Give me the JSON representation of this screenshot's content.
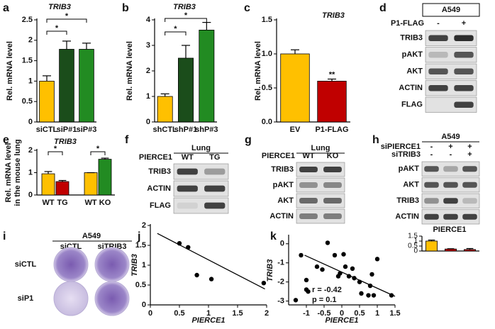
{
  "panel_labels": [
    "a",
    "b",
    "c",
    "d",
    "e",
    "f",
    "g",
    "h",
    "i",
    "j",
    "k"
  ],
  "chart_data": [
    {
      "type": "bar",
      "title": "TRIB3",
      "y_label": "Rel. mRNA level",
      "categories": [
        "siCTL",
        "siP#1",
        "siP#3"
      ],
      "values": [
        1.0,
        1.78,
        1.78
      ],
      "errors": [
        0.13,
        0.2,
        0.15
      ],
      "colors": [
        "#FFC000",
        "#1B4D1B",
        "#228B22"
      ],
      "ylim": [
        0,
        2.5
      ],
      "yticks": [
        0,
        0.5,
        1,
        1.5,
        2,
        2.5
      ],
      "brackets": [
        {
          "between": [
            0,
            1
          ],
          "label": "*"
        },
        {
          "between": [
            0,
            2
          ],
          "label": "*"
        }
      ]
    },
    {
      "type": "bar",
      "title": "TRIB3",
      "y_label": "Rel. mRNA level",
      "categories": [
        "shCTL",
        "shP#1",
        "shP#3"
      ],
      "values": [
        1.0,
        2.5,
        3.6
      ],
      "errors": [
        0.1,
        0.5,
        0.3
      ],
      "colors": [
        "#FFC000",
        "#1B4D1B",
        "#228B22"
      ],
      "ylim": [
        0,
        4
      ],
      "yticks": [
        0,
        1,
        2,
        3,
        4
      ],
      "brackets": [
        {
          "between": [
            0,
            1
          ],
          "label": "*"
        },
        {
          "between": [
            0,
            2
          ],
          "label": "*"
        }
      ]
    },
    {
      "type": "bar",
      "title": "TRIB3",
      "y_label": "Rel. mRNA level",
      "categories": [
        "EV",
        "P1-FLAG"
      ],
      "values": [
        1.0,
        0.6
      ],
      "errors": [
        0.06,
        0.03
      ],
      "colors": [
        "#FFC000",
        "#C00000"
      ],
      "ylim": [
        0,
        1.5
      ],
      "yticks": [
        {
          "value": 0,
          "label": "0.0"
        },
        {
          "value": 0.5,
          "label": "0.5"
        },
        {
          "value": 1,
          "label": "1.0"
        },
        {
          "value": 1.5,
          "label": "1.5"
        }
      ],
      "significance": [
        null,
        "**"
      ]
    },
    {
      "type": "bar",
      "title": "TRIB3",
      "y_label": [
        "Rel. mRNA level",
        "in the mouse lung"
      ],
      "categories": [
        "WT",
        "TG",
        "WT",
        "KO"
      ],
      "values": [
        0.95,
        0.6,
        1.0,
        1.6
      ],
      "errors": [
        0.1,
        0.05,
        0.0,
        0.05
      ],
      "colors": [
        "#FFC000",
        "#C00000",
        "#FFC000",
        "#228B22"
      ],
      "ylim": [
        0,
        2
      ],
      "yticks": [
        0,
        1,
        2
      ],
      "brackets": [
        {
          "between": [
            0,
            1
          ],
          "label": "*"
        },
        {
          "between": [
            2,
            3
          ],
          "label": "*"
        }
      ]
    },
    {
      "type": "bar",
      "title": "PIERCE1",
      "values": [
        1.0,
        0.2,
        0.15
      ],
      "errors": [
        0.1,
        0.03,
        0.1
      ],
      "colors": [
        "#FFC000",
        "#C00000",
        "#C00000"
      ],
      "ylim": [
        0,
        1.5
      ],
      "yticks": [
        0,
        0.5,
        1,
        1.5
      ]
    },
    {
      "type": "scatter",
      "x_label": "PIERCE1",
      "y_label": "TRIB3",
      "x": [
        0.5,
        0.65,
        0.8,
        1.05,
        1.95
      ],
      "y": [
        1.55,
        1.45,
        0.75,
        0.65,
        0.55
      ],
      "fit": {
        "x": [
          0.12,
          1.97
        ],
        "y": [
          1.8,
          0.4
        ]
      },
      "xlim": [
        0,
        2
      ],
      "xticks": [
        0,
        0.5,
        1,
        1.5,
        2
      ],
      "ylim": [
        0,
        2
      ],
      "yticks": [
        0,
        0.5,
        1,
        1.5,
        2
      ]
    },
    {
      "type": "scatter",
      "x_label": "PIERCE1",
      "y_label": "TRIB3",
      "x": [
        -1.15,
        -1.0,
        -1.0,
        -0.95,
        -0.7,
        -0.55,
        -0.4,
        -0.2,
        -0.1,
        -0.05,
        0.05,
        0.1,
        0.2,
        0.3,
        0.35,
        0.5,
        0.55,
        0.75,
        0.8,
        0.85,
        0.9,
        1.0,
        1.4,
        -1.3
      ],
      "y": [
        -0.6,
        -2.4,
        -1.9,
        -2.5,
        -1.2,
        -1.35,
        0.05,
        -0.6,
        -1.7,
        -1.55,
        -0.55,
        -1.2,
        -1.7,
        -1.3,
        -1.8,
        -2.0,
        -2.6,
        -2.7,
        -2.2,
        -1.6,
        -2.7,
        -0.8,
        -2.7,
        -2.95
      ],
      "fit": {
        "x": [
          -1.05,
          1.5
        ],
        "y": [
          -0.6,
          -2.75
        ]
      },
      "xlim": [
        -1.5,
        1.5
      ],
      "xticks": [
        -1,
        -0.5,
        0,
        0.5,
        1,
        1.5
      ],
      "ylim": [
        -3.2,
        0.4
      ],
      "yticks": [
        0,
        -1,
        -2,
        -3
      ],
      "annotations": [
        "r = -0.42",
        "p = 0.1"
      ]
    }
  ],
  "blots": [
    {
      "group": "A549",
      "conditions": [
        {
          "name": "P1-FLAG",
          "lanes": [
            "-",
            "+"
          ]
        }
      ],
      "rows": [
        "TRIB3",
        "pAKT",
        "AKT",
        "ACTIN",
        "FLAG"
      ]
    },
    {
      "group": "Lung",
      "conditions": [
        {
          "name": "PIERCE1",
          "lanes": [
            "WT",
            "TG"
          ]
        }
      ],
      "rows": [
        "TRIB3",
        "ACTIN",
        "FLAG"
      ]
    },
    {
      "group": "Lung",
      "conditions": [
        {
          "name": "PIERCE1",
          "lanes": [
            "WT",
            "KO"
          ]
        }
      ],
      "rows": [
        "TRIB3",
        "pAKT",
        "AKT",
        "ACTIN"
      ]
    },
    {
      "group": "A549",
      "conditions": [
        {
          "name": "siPIERCE1",
          "lanes": [
            "-",
            "+",
            "+"
          ]
        },
        {
          "name": "siTRIB3",
          "lanes": [
            "-",
            "-",
            "+"
          ]
        }
      ],
      "rows": [
        "pAKT",
        "AKT",
        "TRIB3",
        "ACTIN"
      ]
    }
  ],
  "colony": {
    "group": "A549",
    "columns": [
      "siCTL",
      "siTRIB3"
    ],
    "rows": [
      "siCTL",
      "siP1"
    ]
  }
}
